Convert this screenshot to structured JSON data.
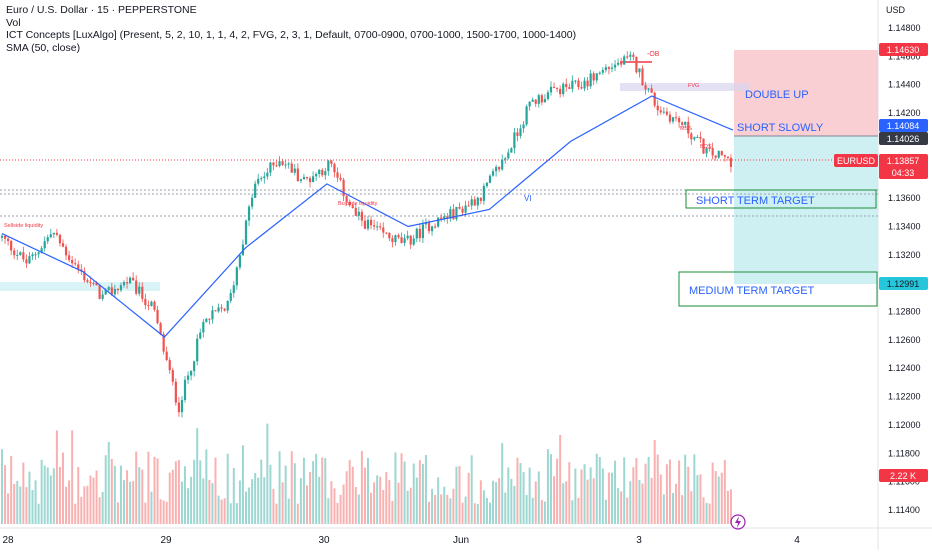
{
  "legend": {
    "symbol_line": "Euro / U.S. Dollar · 15 · PEPPERSTONE",
    "vol_line": "Vol",
    "ict_line": "ICT Concepts [LuxAlgo] (Present, 5, 2, 10, 1, 1, 4, 2, FVG, 2, 3, 1, Default, 0700-0900, 0700-1000, 1500-1700, 1000-1400)",
    "sma_line": "SMA (50, close)"
  },
  "axis": {
    "currency": "USD",
    "y_ticks": [
      "1.14800",
      "1.14600",
      "1.14400",
      "1.14200",
      "1.14000",
      "1.13800",
      "1.13600",
      "1.13400",
      "1.13200",
      "1.13000",
      "1.12800",
      "1.12600",
      "1.12400",
      "1.12200",
      "1.12000",
      "1.11800",
      "1.11600",
      "1.11400"
    ],
    "x_ticks": [
      "28",
      "29",
      "30",
      "Jun",
      "3",
      "4"
    ]
  },
  "badges": {
    "target_high": "1.14630",
    "sma_price": "1.14084",
    "last_price": "1.14026",
    "symbol": "EURUSD",
    "symbol_price": "1.13857",
    "countdown": "04:33",
    "target_low": "1.12991",
    "volume": "2.22 K"
  },
  "annotations": {
    "double_up": "DOUBLE UP",
    "short_slowly": "SHORT SLOWLY",
    "short_term_target": "SHORT TERM TARGET",
    "medium_term_target": "MEDIUM TERM TARGET",
    "ob_label": "-OB",
    "vi_label": "VI",
    "sell_liq_left": "Sellside liquidity",
    "sell_liq_mid": "Buyside liquidity",
    "fvg_label": "FVG",
    "mss_label": "MSS",
    "bos_label": "BOS"
  },
  "colors": {
    "up": "#26a69a",
    "down": "#ef5350",
    "sma": "#2962ff",
    "annotation_text": "#2962ff",
    "stop_zone": "#f8c7cc",
    "target_zone": "#c9eef2",
    "green_box": "#1e8c3a",
    "badge_red": "#f23645",
    "badge_blue": "#2962ff",
    "badge_dark": "#363a45"
  },
  "chart_data": {
    "type": "candlestick",
    "symbol": "EURUSD",
    "timeframe": "15",
    "ylim": [
      1.113,
      1.149
    ],
    "x": [
      "28",
      "29",
      "30",
      "Jun",
      "3",
      "4"
    ],
    "path_points": [
      {
        "x": "28",
        "price": 1.1332
      },
      {
        "x": "28",
        "price": 1.1314
      },
      {
        "x": "28",
        "price": 1.1336
      },
      {
        "x": "28.5",
        "price": 1.131
      },
      {
        "x": "28.5",
        "price": 1.129
      },
      {
        "x": "28.5",
        "price": 1.1302
      },
      {
        "x": "29",
        "price": 1.1282
      },
      {
        "x": "29",
        "price": 1.1212
      },
      {
        "x": "29",
        "price": 1.1272
      },
      {
        "x": "29.5",
        "price": 1.1285
      },
      {
        "x": "29.5",
        "price": 1.1368
      },
      {
        "x": "29.5",
        "price": 1.1388
      },
      {
        "x": "30",
        "price": 1.1372
      },
      {
        "x": "30",
        "price": 1.1384
      },
      {
        "x": "30",
        "price": 1.1348
      },
      {
        "x": "30.5",
        "price": 1.1335
      },
      {
        "x": "30.5",
        "price": 1.1328
      },
      {
        "x": "30.5",
        "price": 1.1342
      },
      {
        "x": "Jun",
        "price": 1.135
      },
      {
        "x": "Jun",
        "price": 1.1362
      },
      {
        "x": "Jun",
        "price": 1.139
      },
      {
        "x": "Jun 2",
        "price": 1.1428
      },
      {
        "x": "Jun 2",
        "price": 1.1436
      },
      {
        "x": "Jun 2",
        "price": 1.144
      },
      {
        "x": "3",
        "price": 1.1452
      },
      {
        "x": "3",
        "price": 1.1458
      },
      {
        "x": "3",
        "price": 1.1424
      },
      {
        "x": "3.5",
        "price": 1.1412
      },
      {
        "x": "3.5",
        "price": 1.1392
      },
      {
        "x": "3.5",
        "price": 1.1386
      }
    ],
    "sma_points": [
      {
        "x": "28",
        "price": 1.1335
      },
      {
        "x": "28.5",
        "price": 1.1308
      },
      {
        "x": "29",
        "price": 1.1262
      },
      {
        "x": "29.5",
        "price": 1.1325
      },
      {
        "x": "30",
        "price": 1.137
      },
      {
        "x": "30.5",
        "price": 1.134
      },
      {
        "x": "Jun",
        "price": 1.1352
      },
      {
        "x": "Jun 2",
        "price": 1.14
      },
      {
        "x": "3",
        "price": 1.1432
      },
      {
        "x": "3.5",
        "price": 1.1408
      }
    ],
    "levels": {
      "stop": 1.1463,
      "entry": 1.14026,
      "short_term_target": 1.136,
      "medium_term_target": 1.12991,
      "current": 1.13857
    }
  }
}
